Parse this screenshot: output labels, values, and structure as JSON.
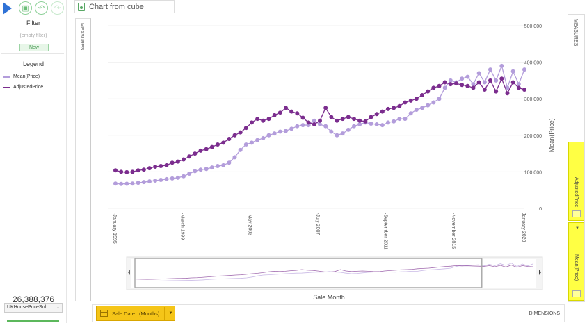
{
  "toolbar": {
    "icons": [
      "play-icon",
      "save-icon",
      "undo-icon",
      "redo-icon"
    ]
  },
  "title": "Chart from cube",
  "filter": {
    "title": "Filter",
    "empty": "(empty filter)",
    "new_label": "New"
  },
  "legend": {
    "title": "Legend",
    "items": [
      {
        "label": "Mean(Price)",
        "color": "#b39ddb"
      },
      {
        "label": "AdjustedPrice",
        "color": "#7b2d8e"
      }
    ]
  },
  "total": "26,388,376",
  "cube": {
    "selected": "UKHousePriceSol..."
  },
  "measures_label": "MEASURES",
  "dimensions_label": "DIMENSIONS",
  "dimension_chip": {
    "field": "Sale Date",
    "level": "(Months)"
  },
  "right_measures": [
    "AdjustedPrice",
    "Mean(Price)"
  ],
  "chart_data": {
    "type": "line",
    "title": "",
    "xlabel": "Sale Month",
    "ylabel": "Mean(Price)",
    "ylim": [
      0,
      500000
    ],
    "yticks": [
      "0",
      "100,000",
      "200,000",
      "300,000",
      "400,000",
      "500,000"
    ],
    "ytick_values": [
      0,
      100000,
      200000,
      300000,
      400000,
      500000
    ],
    "xticks": [
      "January 1995",
      "March 1999",
      "May 2003",
      "July 2007",
      "September 2011",
      "November 2015",
      "January 2020"
    ],
    "xtick_positions": [
      0,
      0.1656,
      0.3312,
      0.4968,
      0.6624,
      0.828,
      1.0
    ],
    "x_range": [
      "January 1995",
      "February 2020"
    ],
    "grid": true,
    "legend": "left-panel",
    "series": [
      {
        "name": "Mean(Price)",
        "color": "#b39ddb",
        "values": [
          68000,
          67000,
          67500,
          68000,
          70000,
          72000,
          74000,
          76000,
          78000,
          80000,
          82000,
          84000,
          88000,
          95000,
          102000,
          106000,
          108000,
          112000,
          116000,
          118000,
          125000,
          140000,
          160000,
          175000,
          180000,
          187000,
          192000,
          200000,
          205000,
          210000,
          212000,
          218000,
          225000,
          228000,
          228000,
          240000,
          230000,
          225000,
          210000,
          200000,
          205000,
          215000,
          225000,
          230000,
          235000,
          232000,
          230000,
          228000,
          235000,
          238000,
          245000,
          245000,
          260000,
          270000,
          275000,
          282000,
          290000,
          300000,
          330000,
          350000,
          345000,
          355000,
          360000,
          340000,
          370000,
          345000,
          380000,
          350000,
          390000,
          330000,
          375000,
          340000,
          380000
        ]
      },
      {
        "name": "AdjustedPrice",
        "color": "#7b2d8e",
        "values": [
          104000,
          100000,
          99000,
          100000,
          104000,
          106000,
          110000,
          114000,
          116000,
          118000,
          125000,
          128000,
          134000,
          142000,
          150000,
          158000,
          162000,
          168000,
          175000,
          180000,
          190000,
          200000,
          208000,
          220000,
          235000,
          245000,
          240000,
          245000,
          255000,
          262000,
          275000,
          265000,
          260000,
          248000,
          235000,
          230000,
          240000,
          275000,
          250000,
          240000,
          245000,
          250000,
          245000,
          240000,
          238000,
          250000,
          258000,
          265000,
          272000,
          275000,
          280000,
          290000,
          295000,
          300000,
          310000,
          320000,
          330000,
          335000,
          345000,
          340000,
          342000,
          338000,
          335000,
          330000,
          345000,
          325000,
          350000,
          320000,
          355000,
          315000,
          345000,
          330000,
          325000
        ]
      }
    ],
    "overview": {
      "type": "line",
      "visible_window": [
        0,
        0.87
      ]
    }
  }
}
